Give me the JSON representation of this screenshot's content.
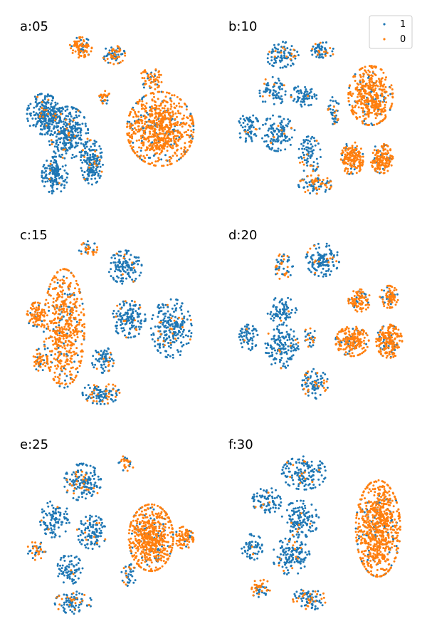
{
  "chart_data": {
    "type": "scatter",
    "grid": false,
    "axes_visible": false,
    "legend": {
      "placement": "top-right of panel b",
      "entries": [
        {
          "label": "1",
          "color": "#1f77b4"
        },
        {
          "label": "0",
          "color": "#ff7f0e"
        }
      ]
    },
    "colors": {
      "class_1": "#1f77b4",
      "class_0": "#ff7f0e"
    },
    "panels": [
      {
        "title": "a:05",
        "clusters": [
          {
            "cx": 0.34,
            "cy": 0.16,
            "rx": 0.06,
            "ry": 0.055,
            "n": 90,
            "orange": 0.7
          },
          {
            "cx": 0.52,
            "cy": 0.2,
            "rx": 0.06,
            "ry": 0.05,
            "n": 80,
            "orange": 0.5
          },
          {
            "cx": 0.47,
            "cy": 0.43,
            "rx": 0.03,
            "ry": 0.035,
            "n": 30,
            "orange": 0.8
          },
          {
            "cx": 0.14,
            "cy": 0.52,
            "rx": 0.09,
            "ry": 0.11,
            "n": 260,
            "orange": 0.05
          },
          {
            "cx": 0.27,
            "cy": 0.62,
            "rx": 0.11,
            "ry": 0.14,
            "n": 300,
            "orange": 0.08
          },
          {
            "cx": 0.4,
            "cy": 0.78,
            "rx": 0.06,
            "ry": 0.12,
            "n": 160,
            "orange": 0.05
          },
          {
            "cx": 0.2,
            "cy": 0.85,
            "rx": 0.07,
            "ry": 0.1,
            "n": 140,
            "orange": 0.03
          },
          {
            "cx": 0.72,
            "cy": 0.33,
            "rx": 0.06,
            "ry": 0.06,
            "n": 60,
            "orange": 0.85
          },
          {
            "cx": 0.77,
            "cy": 0.6,
            "rx": 0.18,
            "ry": 0.2,
            "n": 750,
            "orange": 0.85
          }
        ]
      },
      {
        "title": "b:10",
        "clusters": [
          {
            "cx": 0.3,
            "cy": 0.2,
            "rx": 0.09,
            "ry": 0.07,
            "n": 90,
            "orange": 0.15
          },
          {
            "cx": 0.52,
            "cy": 0.18,
            "rx": 0.06,
            "ry": 0.05,
            "n": 60,
            "orange": 0.2
          },
          {
            "cx": 0.25,
            "cy": 0.4,
            "rx": 0.07,
            "ry": 0.08,
            "n": 70,
            "orange": 0.05
          },
          {
            "cx": 0.42,
            "cy": 0.42,
            "rx": 0.07,
            "ry": 0.06,
            "n": 70,
            "orange": 0.05
          },
          {
            "cx": 0.12,
            "cy": 0.6,
            "rx": 0.06,
            "ry": 0.08,
            "n": 70,
            "orange": 0.02
          },
          {
            "cx": 0.28,
            "cy": 0.62,
            "rx": 0.09,
            "ry": 0.1,
            "n": 120,
            "orange": 0.04
          },
          {
            "cx": 0.45,
            "cy": 0.74,
            "rx": 0.06,
            "ry": 0.1,
            "n": 80,
            "orange": 0.2
          },
          {
            "cx": 0.48,
            "cy": 0.9,
            "rx": 0.09,
            "ry": 0.05,
            "n": 90,
            "orange": 0.4
          },
          {
            "cx": 0.78,
            "cy": 0.42,
            "rx": 0.12,
            "ry": 0.16,
            "n": 420,
            "orange": 0.85
          },
          {
            "cx": 0.68,
            "cy": 0.76,
            "rx": 0.06,
            "ry": 0.09,
            "n": 170,
            "orange": 0.85
          },
          {
            "cx": 0.84,
            "cy": 0.76,
            "rx": 0.06,
            "ry": 0.08,
            "n": 150,
            "orange": 0.85
          },
          {
            "cx": 0.58,
            "cy": 0.5,
            "rx": 0.03,
            "ry": 0.08,
            "n": 40,
            "orange": 0.3
          }
        ]
      },
      {
        "title": "c:15",
        "clusters": [
          {
            "cx": 0.1,
            "cy": 0.48,
            "rx": 0.05,
            "ry": 0.07,
            "n": 90,
            "orange": 0.85
          },
          {
            "cx": 0.25,
            "cy": 0.55,
            "rx": 0.11,
            "ry": 0.32,
            "n": 550,
            "orange": 0.85
          },
          {
            "cx": 0.12,
            "cy": 0.72,
            "rx": 0.04,
            "ry": 0.06,
            "n": 50,
            "orange": 0.8
          },
          {
            "cx": 0.38,
            "cy": 0.12,
            "rx": 0.05,
            "ry": 0.04,
            "n": 35,
            "orange": 0.5
          },
          {
            "cx": 0.58,
            "cy": 0.22,
            "rx": 0.09,
            "ry": 0.09,
            "n": 130,
            "orange": 0.05
          },
          {
            "cx": 0.6,
            "cy": 0.5,
            "rx": 0.09,
            "ry": 0.1,
            "n": 150,
            "orange": 0.08
          },
          {
            "cx": 0.83,
            "cy": 0.55,
            "rx": 0.11,
            "ry": 0.16,
            "n": 230,
            "orange": 0.05
          },
          {
            "cx": 0.46,
            "cy": 0.72,
            "rx": 0.06,
            "ry": 0.07,
            "n": 70,
            "orange": 0.15
          },
          {
            "cx": 0.45,
            "cy": 0.9,
            "rx": 0.1,
            "ry": 0.06,
            "n": 110,
            "orange": 0.2
          }
        ]
      },
      {
        "title": "d:20",
        "clusters": [
          {
            "cx": 0.3,
            "cy": 0.22,
            "rx": 0.06,
            "ry": 0.07,
            "n": 50,
            "orange": 0.3
          },
          {
            "cx": 0.52,
            "cy": 0.18,
            "rx": 0.09,
            "ry": 0.09,
            "n": 130,
            "orange": 0.05
          },
          {
            "cx": 0.3,
            "cy": 0.45,
            "rx": 0.08,
            "ry": 0.07,
            "n": 80,
            "orange": 0.05
          },
          {
            "cx": 0.12,
            "cy": 0.6,
            "rx": 0.05,
            "ry": 0.07,
            "n": 60,
            "orange": 0.02
          },
          {
            "cx": 0.3,
            "cy": 0.65,
            "rx": 0.09,
            "ry": 0.12,
            "n": 150,
            "orange": 0.05
          },
          {
            "cx": 0.48,
            "cy": 0.85,
            "rx": 0.07,
            "ry": 0.08,
            "n": 90,
            "orange": 0.25
          },
          {
            "cx": 0.72,
            "cy": 0.4,
            "rx": 0.06,
            "ry": 0.06,
            "n": 90,
            "orange": 0.85
          },
          {
            "cx": 0.88,
            "cy": 0.38,
            "rx": 0.05,
            "ry": 0.06,
            "n": 80,
            "orange": 0.85
          },
          {
            "cx": 0.68,
            "cy": 0.62,
            "rx": 0.09,
            "ry": 0.08,
            "n": 200,
            "orange": 0.85
          },
          {
            "cx": 0.88,
            "cy": 0.62,
            "rx": 0.07,
            "ry": 0.09,
            "n": 200,
            "orange": 0.85
          },
          {
            "cx": 0.45,
            "cy": 0.6,
            "rx": 0.04,
            "ry": 0.05,
            "n": 30,
            "orange": 0.3
          }
        ]
      },
      {
        "title": "e:25",
        "clusters": [
          {
            "cx": 0.35,
            "cy": 0.25,
            "rx": 0.1,
            "ry": 0.1,
            "n": 160,
            "orange": 0.15
          },
          {
            "cx": 0.58,
            "cy": 0.15,
            "rx": 0.05,
            "ry": 0.04,
            "n": 30,
            "orange": 0.6
          },
          {
            "cx": 0.2,
            "cy": 0.45,
            "rx": 0.08,
            "ry": 0.1,
            "n": 100,
            "orange": 0.05
          },
          {
            "cx": 0.4,
            "cy": 0.52,
            "rx": 0.08,
            "ry": 0.09,
            "n": 110,
            "orange": 0.08
          },
          {
            "cx": 0.1,
            "cy": 0.62,
            "rx": 0.05,
            "ry": 0.05,
            "n": 40,
            "orange": 0.5
          },
          {
            "cx": 0.28,
            "cy": 0.72,
            "rx": 0.07,
            "ry": 0.08,
            "n": 80,
            "orange": 0.1
          },
          {
            "cx": 0.3,
            "cy": 0.9,
            "rx": 0.1,
            "ry": 0.06,
            "n": 90,
            "orange": 0.15
          },
          {
            "cx": 0.72,
            "cy": 0.55,
            "rx": 0.12,
            "ry": 0.18,
            "n": 600,
            "orange": 0.88
          },
          {
            "cx": 0.9,
            "cy": 0.55,
            "rx": 0.05,
            "ry": 0.06,
            "n": 80,
            "orange": 0.85
          },
          {
            "cx": 0.6,
            "cy": 0.75,
            "rx": 0.04,
            "ry": 0.06,
            "n": 40,
            "orange": 0.2
          }
        ]
      },
      {
        "title": "f:30",
        "clusters": [
          {
            "cx": 0.42,
            "cy": 0.2,
            "rx": 0.12,
            "ry": 0.09,
            "n": 150,
            "orange": 0.15
          },
          {
            "cx": 0.22,
            "cy": 0.35,
            "rx": 0.08,
            "ry": 0.07,
            "n": 80,
            "orange": 0.05
          },
          {
            "cx": 0.4,
            "cy": 0.45,
            "rx": 0.1,
            "ry": 0.1,
            "n": 140,
            "orange": 0.05
          },
          {
            "cx": 0.14,
            "cy": 0.6,
            "rx": 0.06,
            "ry": 0.07,
            "n": 60,
            "orange": 0.05
          },
          {
            "cx": 0.35,
            "cy": 0.65,
            "rx": 0.1,
            "ry": 0.1,
            "n": 140,
            "orange": 0.08
          },
          {
            "cx": 0.18,
            "cy": 0.82,
            "rx": 0.06,
            "ry": 0.05,
            "n": 50,
            "orange": 0.5
          },
          {
            "cx": 0.45,
            "cy": 0.88,
            "rx": 0.09,
            "ry": 0.06,
            "n": 90,
            "orange": 0.3
          },
          {
            "cx": 0.82,
            "cy": 0.5,
            "rx": 0.12,
            "ry": 0.26,
            "n": 750,
            "orange": 0.88
          }
        ]
      }
    ]
  }
}
